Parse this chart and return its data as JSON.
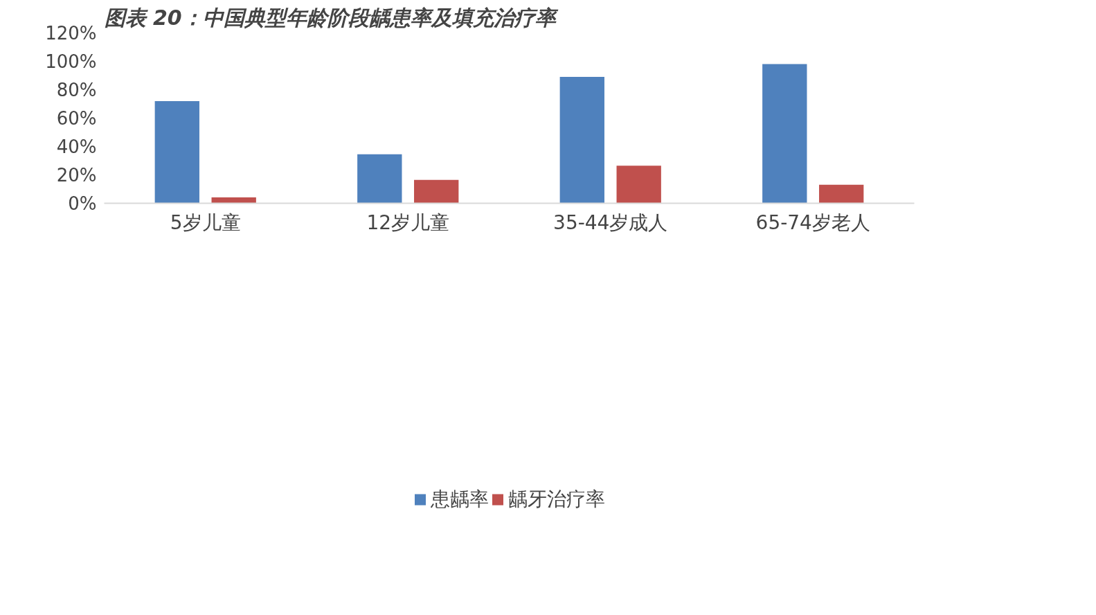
{
  "chart_data": {
    "type": "bar",
    "title": "图表 20：中国典型年龄阶段龋患率及填充治疗率",
    "categories": [
      "5岁儿童",
      "12岁儿童",
      "35-44岁成人",
      "65-74岁老人"
    ],
    "series": [
      {
        "name": "患龋率",
        "color": "#4f81bd",
        "values": [
          71.9,
          34.5,
          89.0,
          98.0
        ]
      },
      {
        "name": "龋牙治疗率",
        "color": "#c0504d",
        "values": [
          4.1,
          16.5,
          26.5,
          13.0
        ]
      }
    ],
    "ylim": [
      0,
      120
    ],
    "yticks": [
      {
        "value": 0,
        "label": "0%"
      },
      {
        "value": 20,
        "label": "20%"
      },
      {
        "value": 40,
        "label": "40%"
      },
      {
        "value": 60,
        "label": "60%"
      },
      {
        "value": 80,
        "label": "80%"
      },
      {
        "value": 100,
        "label": "100%"
      },
      {
        "value": 120,
        "label": "120%"
      }
    ],
    "grid": false,
    "legend": "bottom"
  }
}
